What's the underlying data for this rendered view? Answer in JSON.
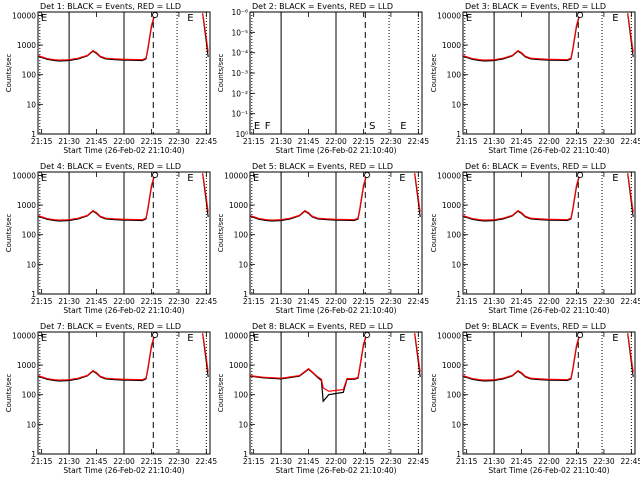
{
  "figure": {
    "start_time_label": "Start Time (26-Feb-02 21:10:40)",
    "ylabel": "Counts/sec",
    "xticks": [
      "21:15",
      "21:30",
      "21:45",
      "22:00",
      "22:15",
      "22:30",
      "22:45"
    ],
    "yticks_log": [
      "1",
      "10",
      "100",
      "1000",
      "10000"
    ],
    "yticks_det2": [
      "10⁰",
      "10⁻¹",
      "10⁻²",
      "10⁻³",
      "10⁻⁴",
      "10⁻⁵",
      "10⁻⁶"
    ],
    "colors": {
      "events": "#000000",
      "lld": "#ff0000"
    }
  },
  "panels": [
    {
      "title": "Det 1: BLACK = Events, RED = LLD",
      "mark_label": "E",
      "mark_time": "21:14"
    },
    {
      "title": "Det 2: BLACK = Events, RED = LLD",
      "letters": [
        {
          "label": "E",
          "time": "21:14"
        },
        {
          "label": "F",
          "time": "21:20"
        },
        {
          "label": "S",
          "time": "22:17"
        },
        {
          "label": "E",
          "time": "22:34"
        }
      ]
    },
    {
      "title": "Det 3: BLACK = Events, RED = LLD",
      "mark_label": "E",
      "mark_time": "21:14"
    },
    {
      "title": "Det 4: BLACK = Events, RED = LLD",
      "mark_label": "E",
      "mark_time": "21:14"
    },
    {
      "title": "Det 5: BLACK = Events, RED = LLD",
      "mark_label": "E",
      "mark_time": "21:14"
    },
    {
      "title": "Det 6: BLACK = Events, RED = LLD",
      "mark_label": "E",
      "mark_time": "21:14"
    },
    {
      "title": "Det 7: BLACK = Events, RED = LLD",
      "mark_label": "E",
      "mark_time": "21:14"
    },
    {
      "title": "Det 8: BLACK = Events, RED = LLD",
      "mark_label": "E",
      "mark_time": "21:14"
    },
    {
      "title": "Det 9: BLACK = Events, RED = LLD",
      "mark_label": "E",
      "mark_time": "21:14"
    }
  ],
  "chart_data": {
    "type": "line",
    "xlabel": "Start Time (26-Feb-02 21:10:40)",
    "ylabel": "Counts/sec",
    "y_scale": "log",
    "ylim": [
      1,
      13000
    ],
    "xlim": [
      "21:13",
      "22:47"
    ],
    "x": [
      "21:13",
      "21:18",
      "21:22",
      "21:25",
      "21:30",
      "21:35",
      "21:40",
      "21:43",
      "21:45",
      "21:47",
      "21:50",
      "21:55",
      "22:00",
      "22:05",
      "22:10",
      "22:12",
      "22:13",
      "22:15",
      "22:17"
    ],
    "series": [
      {
        "name": "Events",
        "values": [
          420,
          330,
          300,
          290,
          300,
          340,
          430,
          620,
          520,
          400,
          340,
          320,
          310,
          305,
          300,
          340,
          700,
          4000,
          12000
        ]
      },
      {
        "name": "LLD",
        "values": [
          440,
          350,
          320,
          310,
          320,
          360,
          450,
          650,
          550,
          420,
          360,
          340,
          330,
          325,
          320,
          360,
          750,
          4500,
          12500
        ]
      }
    ],
    "det8_series": {
      "x": [
        "21:13",
        "21:20",
        "21:30",
        "21:40",
        "21:45",
        "21:48",
        "21:50",
        "21:52",
        "21:53",
        "21:56",
        "22:00",
        "22:04",
        "22:06",
        "22:10",
        "22:12",
        "22:13",
        "22:15",
        "22:17"
      ],
      "events": [
        420,
        370,
        340,
        420,
        720,
        500,
        380,
        300,
        60,
        100,
        110,
        120,
        330,
        330,
        360,
        800,
        4500,
        12000
      ],
      "lld": [
        440,
        390,
        360,
        440,
        750,
        520,
        400,
        330,
        170,
        130,
        140,
        150,
        350,
        350,
        380,
        850,
        5000,
        12500
      ]
    },
    "solid_lines": [
      "21:30",
      "22:00"
    ],
    "dashed_lines": [
      "22:16"
    ],
    "dotted_lines": [
      "22:29",
      "22:45"
    ],
    "event_marks": [
      {
        "label": "o",
        "time": "22:17"
      },
      {
        "label": "E",
        "time": "22:34"
      }
    ],
    "det2_ylim": [
      "10⁻⁶",
      "10⁰"
    ]
  }
}
